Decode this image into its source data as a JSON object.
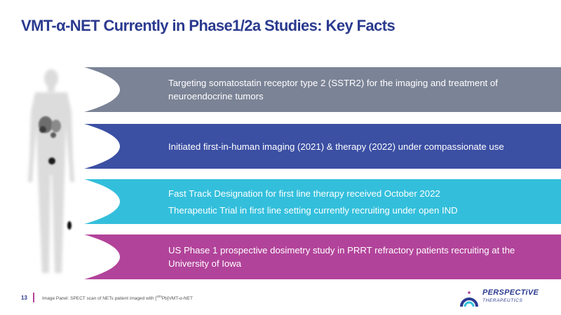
{
  "title": "VMT-α-NET Currently in Phase1/2a Studies: Key Facts",
  "bands": [
    {
      "lines": [
        "Targeting somatostatin receptor type 2 (SSTR2) for the imaging and treatment of neuroendocrine tumors"
      ],
      "color": "#7b8396"
    },
    {
      "lines": [
        "Initiated first-in-human imaging (2021) & therapy (2022) under compassionate use"
      ],
      "color": "#3b4fa3"
    },
    {
      "lines": [
        "Fast Track Designation for first line therapy received October 2022",
        "Therapeutic Trial in first line setting currently recruiting under open IND"
      ],
      "color": "#33bfdc"
    },
    {
      "lines": [
        "US Phase 1 prospective dosimetry study in PRRT refractory patients recruiting at the University of Iowa"
      ],
      "color": "#b2439a"
    }
  ],
  "footer": {
    "page_number": "13",
    "caption_prefix": "Image Panel: SPECT scan of NETs patient imaged with [",
    "caption_sup": "203",
    "caption_suffix": "Pb]VMT-α-NET"
  },
  "logo": {
    "name": "PERSPECTiVE",
    "sub": "THERAPEUTICS"
  },
  "colors": {
    "title": "#2b3a8f",
    "accent": "#b2439a"
  }
}
